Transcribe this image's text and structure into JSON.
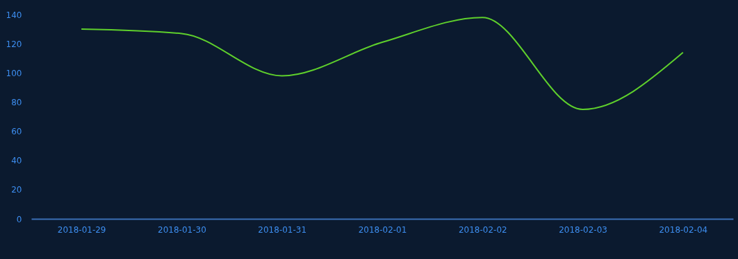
{
  "chart_data": {
    "type": "line",
    "categories": [
      "2018-01-29",
      "2018-01-30",
      "2018-01-31",
      "2018-02-01",
      "2018-02-02",
      "2018-02-03",
      "2018-02-04"
    ],
    "series": [
      {
        "color": "#5fd02c",
        "values": [
          130,
          127,
          98,
          121,
          138,
          75,
          114
        ]
      }
    ],
    "ylim": [
      0,
      140
    ],
    "yticks": [
      0,
      20,
      40,
      60,
      80,
      100,
      120,
      140
    ],
    "grid": false,
    "marker": "none",
    "line_style": "solid"
  }
}
